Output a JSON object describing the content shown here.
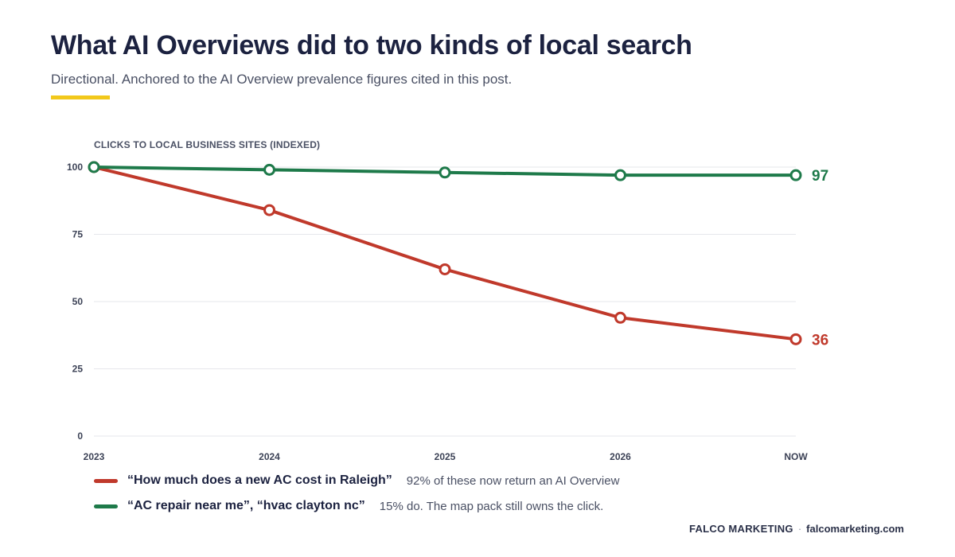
{
  "header": {
    "title": "What AI Overviews did to two kinds of local search",
    "subtitle": "Directional. Anchored to the AI Overview prevalence figures cited in this post."
  },
  "colors": {
    "accent": "#f2c81b",
    "series_red": "#c0392b",
    "series_green": "#1e7a4a",
    "grid": "#e6e7eb"
  },
  "chart_data": {
    "type": "line",
    "ylabel": "CLICKS TO LOCAL BUSINESS SITES (INDEXED)",
    "categories": [
      "2023",
      "2024",
      "2025",
      "2026",
      "NOW"
    ],
    "ylim": [
      0,
      100
    ],
    "yticks": [
      0,
      25,
      50,
      75,
      100
    ],
    "grid": true,
    "legend_placement": "bottom-left",
    "series": [
      {
        "name": "“How much does a new AC cost in Raleigh”",
        "note": "92% of these now return an AI Overview",
        "color": "#c0392b",
        "values": [
          100,
          84,
          62,
          44,
          36
        ],
        "end_label": "36"
      },
      {
        "name": "“AC repair near me”, “hvac clayton nc”",
        "note": "15% do. The map pack still owns the click.",
        "color": "#1e7a4a",
        "values": [
          100,
          99,
          98,
          97,
          97
        ],
        "end_label": "97"
      }
    ]
  },
  "footer": {
    "brand": "FALCO MARKETING",
    "separator": "·",
    "url": "falcomarketing.com"
  }
}
